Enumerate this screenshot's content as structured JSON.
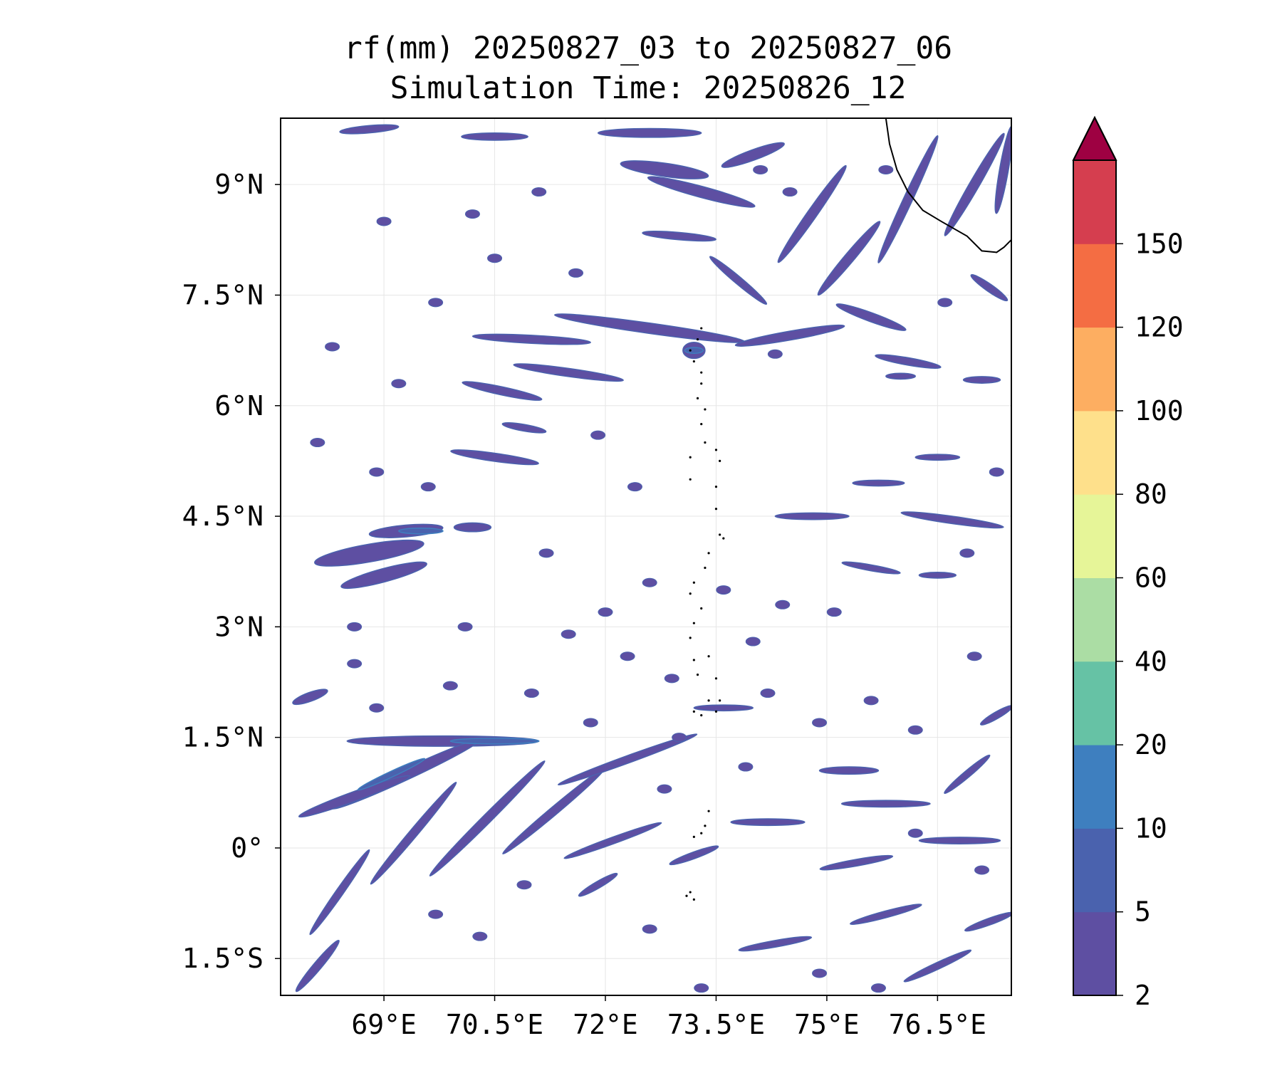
{
  "title": {
    "line1": "rf(mm) 20250827_03 to 20250827_06",
    "line2": "Simulation Time: 20250826_12"
  },
  "map": {
    "lon_range": [
      67.6,
      77.5
    ],
    "lat_range": [
      -2.0,
      9.9
    ],
    "gridlines": true,
    "x_ticks": [
      {
        "value": 69.0,
        "label": "69°E"
      },
      {
        "value": 70.5,
        "label": "70.5°E"
      },
      {
        "value": 72.0,
        "label": "72°E"
      },
      {
        "value": 73.5,
        "label": "73.5°E"
      },
      {
        "value": 75.0,
        "label": "75°E"
      },
      {
        "value": 76.5,
        "label": "76.5°E"
      }
    ],
    "y_ticks": [
      {
        "value": 9.0,
        "label": "9°N"
      },
      {
        "value": 7.5,
        "label": "7.5°N"
      },
      {
        "value": 6.0,
        "label": "6°N"
      },
      {
        "value": 4.5,
        "label": "4.5°N"
      },
      {
        "value": 3.0,
        "label": "3°N"
      },
      {
        "value": 1.5,
        "label": "1.5°N"
      },
      {
        "value": 0.0,
        "label": "0°"
      },
      {
        "value": -1.5,
        "label": "1.5°S"
      }
    ],
    "rain_color": "#5E4FA2",
    "rain_edge_color": "#4A62AE",
    "rain_core_color": "#3E7FBF",
    "coastline_color": "#000000",
    "rain_bands": [
      {
        "lon": 68.8,
        "lat": 9.75,
        "len": 0.8,
        "w": 0.1,
        "ang": 5
      },
      {
        "lon": 70.5,
        "lat": 9.65,
        "len": 0.9,
        "w": 0.1,
        "ang": 0
      },
      {
        "lon": 72.6,
        "lat": 9.7,
        "len": 1.4,
        "w": 0.12,
        "ang": 0
      },
      {
        "lon": 72.8,
        "lat": 9.2,
        "len": 1.2,
        "w": 0.18,
        "ang": -8
      },
      {
        "lon": 73.3,
        "lat": 8.9,
        "len": 1.5,
        "w": 0.15,
        "ang": -15
      },
      {
        "lon": 74.0,
        "lat": 9.4,
        "len": 0.9,
        "w": 0.14,
        "ang": 20
      },
      {
        "lon": 74.8,
        "lat": 8.6,
        "len": 1.6,
        "w": 0.13,
        "ang": 55
      },
      {
        "lon": 75.3,
        "lat": 8.0,
        "len": 1.3,
        "w": 0.13,
        "ang": 50
      },
      {
        "lon": 75.6,
        "lat": 7.2,
        "len": 1.0,
        "w": 0.12,
        "ang": -20
      },
      {
        "lon": 76.1,
        "lat": 8.8,
        "len": 1.9,
        "w": 0.12,
        "ang": 65
      },
      {
        "lon": 77.0,
        "lat": 9.0,
        "len": 1.6,
        "w": 0.13,
        "ang": 60
      },
      {
        "lon": 77.4,
        "lat": 9.2,
        "len": 1.2,
        "w": 0.12,
        "ang": 80
      },
      {
        "lon": 77.2,
        "lat": 7.6,
        "len": 0.6,
        "w": 0.1,
        "ang": -35
      },
      {
        "lon": 73.0,
        "lat": 8.3,
        "len": 1.0,
        "w": 0.1,
        "ang": -5
      },
      {
        "lon": 73.8,
        "lat": 7.7,
        "len": 1.0,
        "w": 0.1,
        "ang": -40
      },
      {
        "lon": 72.6,
        "lat": 7.05,
        "len": 2.6,
        "w": 0.14,
        "ang": -8
      },
      {
        "lon": 74.5,
        "lat": 6.95,
        "len": 1.5,
        "w": 0.12,
        "ang": 10
      },
      {
        "lon": 71.0,
        "lat": 6.9,
        "len": 1.6,
        "w": 0.11,
        "ang": -3
      },
      {
        "lon": 71.5,
        "lat": 6.45,
        "len": 1.5,
        "w": 0.11,
        "ang": -8
      },
      {
        "lon": 70.6,
        "lat": 6.2,
        "len": 1.1,
        "w": 0.11,
        "ang": -12
      },
      {
        "lon": 70.5,
        "lat": 5.3,
        "len": 1.2,
        "w": 0.11,
        "ang": -8
      },
      {
        "lon": 70.9,
        "lat": 5.7,
        "len": 0.6,
        "w": 0.09,
        "ang": -10
      },
      {
        "lon": 73.2,
        "lat": 6.75,
        "len": 0.3,
        "w": 0.22,
        "ang": 0
      },
      {
        "lon": 76.1,
        "lat": 6.6,
        "len": 0.9,
        "w": 0.1,
        "ang": -10
      },
      {
        "lon": 77.1,
        "lat": 6.35,
        "len": 0.5,
        "w": 0.09,
        "ang": 0
      },
      {
        "lon": 76.0,
        "lat": 6.4,
        "len": 0.4,
        "w": 0.08,
        "ang": 0
      },
      {
        "lon": 68.8,
        "lat": 4.0,
        "len": 1.5,
        "w": 0.24,
        "ang": 10
      },
      {
        "lon": 69.0,
        "lat": 3.7,
        "len": 1.2,
        "w": 0.18,
        "ang": 15
      },
      {
        "lon": 69.3,
        "lat": 4.3,
        "len": 1.0,
        "w": 0.16,
        "ang": 5
      },
      {
        "lon": 70.2,
        "lat": 4.35,
        "len": 0.5,
        "w": 0.12,
        "ang": 0
      },
      {
        "lon": 74.8,
        "lat": 4.5,
        "len": 1.0,
        "w": 0.09,
        "ang": 0
      },
      {
        "lon": 76.7,
        "lat": 4.45,
        "len": 1.4,
        "w": 0.1,
        "ang": -8
      },
      {
        "lon": 75.7,
        "lat": 4.95,
        "len": 0.7,
        "w": 0.08,
        "ang": 0
      },
      {
        "lon": 76.5,
        "lat": 5.3,
        "len": 0.6,
        "w": 0.08,
        "ang": 0
      },
      {
        "lon": 75.6,
        "lat": 3.8,
        "len": 0.8,
        "w": 0.08,
        "ang": -10
      },
      {
        "lon": 76.5,
        "lat": 3.7,
        "len": 0.5,
        "w": 0.08,
        "ang": 0
      },
      {
        "lon": 69.8,
        "lat": 1.45,
        "len": 2.6,
        "w": 0.14,
        "ang": 0
      },
      {
        "lon": 69.3,
        "lat": 1.0,
        "len": 2.2,
        "w": 0.15,
        "ang": 25
      },
      {
        "lon": 68.6,
        "lat": 0.7,
        "len": 1.6,
        "w": 0.13,
        "ang": 20
      },
      {
        "lon": 70.4,
        "lat": 0.4,
        "len": 2.2,
        "w": 0.12,
        "ang": 45
      },
      {
        "lon": 69.4,
        "lat": 0.2,
        "len": 1.8,
        "w": 0.11,
        "ang": 50
      },
      {
        "lon": 71.3,
        "lat": 0.5,
        "len": 1.8,
        "w": 0.11,
        "ang": 40
      },
      {
        "lon": 72.3,
        "lat": 1.2,
        "len": 2.0,
        "w": 0.1,
        "ang": 20
      },
      {
        "lon": 73.6,
        "lat": 1.9,
        "len": 0.8,
        "w": 0.08,
        "ang": 0
      },
      {
        "lon": 68.0,
        "lat": 2.05,
        "len": 0.5,
        "w": 0.12,
        "ang": 20
      },
      {
        "lon": 68.4,
        "lat": -0.6,
        "len": 1.4,
        "w": 0.1,
        "ang": 55
      },
      {
        "lon": 68.1,
        "lat": -1.6,
        "len": 0.9,
        "w": 0.11,
        "ang": 50
      },
      {
        "lon": 72.1,
        "lat": 0.1,
        "len": 1.4,
        "w": 0.09,
        "ang": 20
      },
      {
        "lon": 74.2,
        "lat": 0.35,
        "len": 1.0,
        "w": 0.09,
        "ang": 0
      },
      {
        "lon": 75.3,
        "lat": 1.05,
        "len": 0.8,
        "w": 0.1,
        "ang": 0
      },
      {
        "lon": 75.8,
        "lat": 0.6,
        "len": 1.2,
        "w": 0.09,
        "ang": 0
      },
      {
        "lon": 76.8,
        "lat": 0.1,
        "len": 1.1,
        "w": 0.09,
        "ang": 0
      },
      {
        "lon": 75.4,
        "lat": -0.2,
        "len": 1.0,
        "w": 0.09,
        "ang": 10
      },
      {
        "lon": 75.8,
        "lat": -0.9,
        "len": 1.0,
        "w": 0.09,
        "ang": 15
      },
      {
        "lon": 74.3,
        "lat": -1.3,
        "len": 1.0,
        "w": 0.09,
        "ang": 10
      },
      {
        "lon": 76.5,
        "lat": -1.6,
        "len": 1.0,
        "w": 0.09,
        "ang": 25
      },
      {
        "lon": 77.2,
        "lat": -1.0,
        "len": 0.7,
        "w": 0.09,
        "ang": 20
      },
      {
        "lon": 76.9,
        "lat": 1.0,
        "len": 0.8,
        "w": 0.09,
        "ang": 40
      },
      {
        "lon": 77.3,
        "lat": 1.8,
        "len": 0.5,
        "w": 0.09,
        "ang": 30
      },
      {
        "lon": 73.2,
        "lat": -0.1,
        "len": 0.7,
        "w": 0.09,
        "ang": 20
      },
      {
        "lon": 71.9,
        "lat": -0.5,
        "len": 0.6,
        "w": 0.09,
        "ang": 30
      }
    ],
    "rain_cores": [
      {
        "lon": 73.2,
        "lat": 6.75,
        "len": 0.25,
        "w": 0.08,
        "ang": 0
      },
      {
        "lon": 69.5,
        "lat": 4.3,
        "len": 0.6,
        "w": 0.06,
        "ang": 0
      },
      {
        "lon": 70.5,
        "lat": 1.45,
        "len": 1.2,
        "w": 0.05,
        "ang": 0
      },
      {
        "lon": 69.1,
        "lat": 1.0,
        "len": 1.0,
        "w": 0.05,
        "ang": 25
      }
    ],
    "small_cells": [
      {
        "lon": 69.0,
        "lat": 8.5
      },
      {
        "lon": 70.2,
        "lat": 8.6
      },
      {
        "lon": 71.1,
        "lat": 8.9
      },
      {
        "lon": 70.5,
        "lat": 8.0
      },
      {
        "lon": 71.6,
        "lat": 7.8
      },
      {
        "lon": 69.7,
        "lat": 7.4
      },
      {
        "lon": 68.3,
        "lat": 6.8
      },
      {
        "lon": 69.2,
        "lat": 6.3
      },
      {
        "lon": 68.1,
        "lat": 5.5
      },
      {
        "lon": 68.9,
        "lat": 5.1
      },
      {
        "lon": 69.6,
        "lat": 4.9
      },
      {
        "lon": 71.9,
        "lat": 5.6
      },
      {
        "lon": 72.4,
        "lat": 4.9
      },
      {
        "lon": 71.2,
        "lat": 4.0
      },
      {
        "lon": 72.6,
        "lat": 3.6
      },
      {
        "lon": 73.6,
        "lat": 3.5
      },
      {
        "lon": 74.4,
        "lat": 3.3
      },
      {
        "lon": 75.1,
        "lat": 3.2
      },
      {
        "lon": 70.1,
        "lat": 3.0
      },
      {
        "lon": 71.5,
        "lat": 2.9
      },
      {
        "lon": 72.3,
        "lat": 2.6
      },
      {
        "lon": 68.6,
        "lat": 2.5
      },
      {
        "lon": 69.9,
        "lat": 2.2
      },
      {
        "lon": 71.0,
        "lat": 2.1
      },
      {
        "lon": 72.9,
        "lat": 2.3
      },
      {
        "lon": 74.2,
        "lat": 2.1
      },
      {
        "lon": 75.6,
        "lat": 2.0
      },
      {
        "lon": 76.2,
        "lat": 1.6
      },
      {
        "lon": 77.0,
        "lat": 2.6
      },
      {
        "lon": 74.9,
        "lat": 1.7
      },
      {
        "lon": 73.9,
        "lat": 1.1
      },
      {
        "lon": 72.8,
        "lat": 0.8
      },
      {
        "lon": 71.8,
        "lat": 1.7
      },
      {
        "lon": 70.9,
        "lat": -0.5
      },
      {
        "lon": 69.7,
        "lat": -0.9
      },
      {
        "lon": 70.3,
        "lat": -1.2
      },
      {
        "lon": 72.6,
        "lat": -1.1
      },
      {
        "lon": 73.3,
        "lat": -1.9
      },
      {
        "lon": 74.9,
        "lat": -1.7
      },
      {
        "lon": 75.7,
        "lat": -1.9
      },
      {
        "lon": 77.1,
        "lat": -0.3
      },
      {
        "lon": 76.2,
        "lat": 0.2
      },
      {
        "lon": 74.0,
        "lat": 2.8
      },
      {
        "lon": 76.9,
        "lat": 4.0
      },
      {
        "lon": 77.3,
        "lat": 5.1
      },
      {
        "lon": 74.5,
        "lat": 8.9
      },
      {
        "lon": 74.1,
        "lat": 9.2
      },
      {
        "lon": 75.8,
        "lat": 9.2
      },
      {
        "lon": 76.6,
        "lat": 7.4
      },
      {
        "lon": 74.3,
        "lat": 6.7
      },
      {
        "lon": 68.6,
        "lat": 3.0
      },
      {
        "lon": 68.9,
        "lat": 1.9
      },
      {
        "lon": 72.0,
        "lat": 3.2
      },
      {
        "lon": 73.0,
        "lat": 1.5
      }
    ],
    "coastline": [
      [
        75.8,
        9.9
      ],
      [
        75.85,
        9.55
      ],
      [
        75.95,
        9.2
      ],
      [
        76.1,
        8.9
      ],
      [
        76.3,
        8.65
      ],
      [
        76.55,
        8.5
      ],
      [
        76.9,
        8.3
      ],
      [
        77.1,
        8.1
      ],
      [
        77.3,
        8.08
      ],
      [
        77.4,
        8.15
      ],
      [
        77.5,
        8.25
      ]
    ],
    "islands": [
      [
        73.3,
        7.05
      ],
      [
        73.25,
        6.9
      ],
      [
        73.15,
        6.75
      ],
      [
        73.2,
        6.6
      ],
      [
        73.3,
        6.45
      ],
      [
        73.3,
        6.3
      ],
      [
        73.25,
        6.1
      ],
      [
        73.35,
        5.95
      ],
      [
        73.3,
        5.75
      ],
      [
        73.35,
        5.5
      ],
      [
        73.5,
        5.4
      ],
      [
        73.55,
        5.25
      ],
      [
        73.15,
        5.3
      ],
      [
        73.15,
        5.0
      ],
      [
        73.5,
        4.9
      ],
      [
        73.5,
        4.6
      ],
      [
        73.55,
        4.25
      ],
      [
        73.6,
        4.2
      ],
      [
        73.4,
        4.0
      ],
      [
        73.35,
        3.8
      ],
      [
        73.2,
        3.6
      ],
      [
        73.15,
        3.45
      ],
      [
        73.3,
        3.25
      ],
      [
        73.2,
        3.05
      ],
      [
        73.15,
        2.85
      ],
      [
        73.2,
        2.55
      ],
      [
        73.25,
        2.35
      ],
      [
        73.4,
        2.6
      ],
      [
        73.5,
        2.3
      ],
      [
        73.4,
        2.0
      ],
      [
        73.2,
        1.85
      ],
      [
        73.3,
        1.8
      ],
      [
        73.5,
        1.85
      ],
      [
        73.55,
        2.0
      ],
      [
        73.4,
        0.5
      ],
      [
        73.35,
        0.3
      ],
      [
        73.3,
        0.2
      ],
      [
        73.2,
        0.15
      ],
      [
        73.15,
        -0.6
      ],
      [
        73.2,
        -0.7
      ],
      [
        73.1,
        -0.65
      ]
    ]
  },
  "colorbar": {
    "levels": [
      "2",
      "5",
      "10",
      "20",
      "40",
      "60",
      "80",
      "100",
      "120",
      "150"
    ],
    "colors": [
      "#5E4FA2",
      "#4A62AE",
      "#3E7FBF",
      "#66C2A5",
      "#ABDDA4",
      "#E6F598",
      "#FEE08B",
      "#FDAE61",
      "#F46D43",
      "#D53E4F"
    ],
    "extend_color": "#9E0142"
  }
}
